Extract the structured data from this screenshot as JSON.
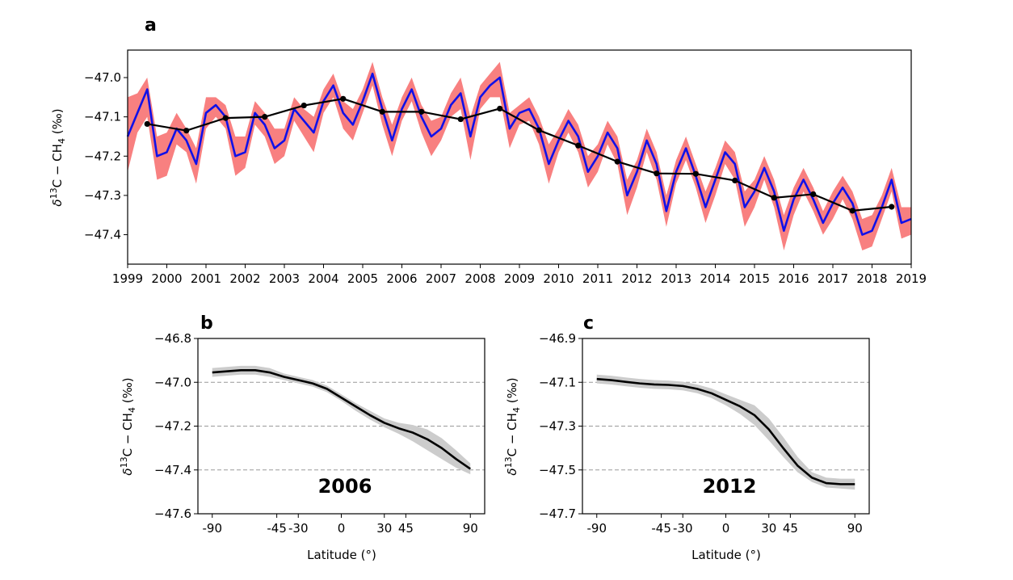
{
  "chart_data": [
    {
      "panel_label": "a",
      "type": "line",
      "ylabel": "δ13C − CH4 (‰)",
      "ylabel_parts": {
        "delta": "δ",
        "sup": "13",
        "mid": "C − CH",
        "sub": "4",
        "unit": " (‰)"
      },
      "xlim": [
        1999.0,
        2019.0
      ],
      "ylim": [
        -47.475,
        -46.93
      ],
      "x_ticks": [
        1999,
        2000,
        2001,
        2002,
        2003,
        2004,
        2005,
        2006,
        2007,
        2008,
        2009,
        2010,
        2011,
        2012,
        2013,
        2014,
        2015,
        2016,
        2017,
        2018,
        2019
      ],
      "x_tick_labels": [
        "1999",
        "2000",
        "2001",
        "2002",
        "2003",
        "2004",
        "2005",
        "2006",
        "2007",
        "2008",
        "2009",
        "2010",
        "2011",
        "2012",
        "2013",
        "2014",
        "2015",
        "2016",
        "2017",
        "2018",
        "2019"
      ],
      "y_ticks": [
        -47.4,
        -47.3,
        -47.2,
        -47.1,
        -47.0
      ],
      "y_tick_labels": [
        "−47.4",
        "−47.3",
        "−47.2",
        "−47.1",
        "−47.0"
      ],
      "series": [
        {
          "kind": "uncertainty_band",
          "color": "#f88080",
          "x": [
            1999.0,
            1999.25,
            1999.5,
            1999.75,
            2000.0,
            2000.25,
            2000.5,
            2000.75,
            2001.0,
            2001.25,
            2001.5,
            2001.75,
            2002.0,
            2002.25,
            2002.5,
            2002.75,
            2003.0,
            2003.25,
            2003.5,
            2003.75,
            2004.0,
            2004.25,
            2004.5,
            2004.75,
            2005.0,
            2005.25,
            2005.5,
            2005.75,
            2006.0,
            2006.25,
            2006.5,
            2006.75,
            2007.0,
            2007.25,
            2007.5,
            2007.75,
            2008.0,
            2008.25,
            2008.5,
            2008.75,
            2009.0,
            2009.25,
            2009.5,
            2009.75,
            2010.0,
            2010.25,
            2010.5,
            2010.75,
            2011.0,
            2011.25,
            2011.5,
            2011.75,
            2012.0,
            2012.25,
            2012.5,
            2012.75,
            2013.0,
            2013.25,
            2013.5,
            2013.75,
            2014.0,
            2014.25,
            2014.5,
            2014.75,
            2015.0,
            2015.25,
            2015.5,
            2015.75,
            2016.0,
            2016.25,
            2016.5,
            2016.75,
            2017.0,
            2017.25,
            2017.5,
            2017.75,
            2018.0,
            2018.25,
            2018.5,
            2018.75,
            2019.0
          ],
          "upper": [
            -47.05,
            -47.04,
            -47.0,
            -47.15,
            -47.14,
            -47.09,
            -47.13,
            -47.18,
            -47.05,
            -47.05,
            -47.07,
            -47.15,
            -47.15,
            -47.06,
            -47.09,
            -47.13,
            -47.13,
            -47.05,
            -47.08,
            -47.1,
            -47.03,
            -46.99,
            -47.06,
            -47.08,
            -47.03,
            -46.96,
            -47.05,
            -47.12,
            -47.05,
            -47.0,
            -47.07,
            -47.11,
            -47.1,
            -47.04,
            -47.0,
            -47.1,
            -47.02,
            -46.99,
            -46.96,
            -47.09,
            -47.07,
            -47.05,
            -47.1,
            -47.17,
            -47.13,
            -47.08,
            -47.12,
            -47.2,
            -47.17,
            -47.11,
            -47.15,
            -47.26,
            -47.21,
            -47.13,
            -47.19,
            -47.3,
            -47.21,
            -47.15,
            -47.22,
            -47.29,
            -47.23,
            -47.16,
            -47.19,
            -47.29,
            -47.26,
            -47.2,
            -47.26,
            -47.35,
            -47.28,
            -47.23,
            -47.28,
            -47.34,
            -47.29,
            -47.25,
            -47.29,
            -47.36,
            -47.35,
            -47.3,
            -47.23,
            -47.33,
            -47.33
          ],
          "lower": [
            -47.24,
            -47.14,
            -47.1,
            -47.26,
            -47.25,
            -47.17,
            -47.19,
            -47.27,
            -47.13,
            -47.1,
            -47.13,
            -47.25,
            -47.23,
            -47.12,
            -47.15,
            -47.22,
            -47.2,
            -47.11,
            -47.15,
            -47.19,
            -47.09,
            -47.05,
            -47.13,
            -47.16,
            -47.09,
            -47.02,
            -47.12,
            -47.2,
            -47.11,
            -47.06,
            -47.14,
            -47.2,
            -47.16,
            -47.1,
            -47.08,
            -47.21,
            -47.08,
            -47.05,
            -47.05,
            -47.18,
            -47.12,
            -47.11,
            -47.17,
            -47.27,
            -47.19,
            -47.14,
            -47.19,
            -47.28,
            -47.24,
            -47.17,
            -47.22,
            -47.35,
            -47.28,
            -47.19,
            -47.26,
            -47.38,
            -47.27,
            -47.21,
            -47.28,
            -47.37,
            -47.3,
            -47.22,
            -47.26,
            -47.38,
            -47.33,
            -47.26,
            -47.33,
            -47.44,
            -47.35,
            -47.29,
            -47.34,
            -47.4,
            -47.36,
            -47.31,
            -47.36,
            -47.44,
            -47.43,
            -47.36,
            -47.29,
            -47.41,
            -47.4
          ]
        },
        {
          "kind": "line",
          "color": "#1010e8",
          "x": [
            1999.0,
            1999.25,
            1999.5,
            1999.75,
            2000.0,
            2000.25,
            2000.5,
            2000.75,
            2001.0,
            2001.25,
            2001.5,
            2001.75,
            2002.0,
            2002.25,
            2002.5,
            2002.75,
            2003.0,
            2003.25,
            2003.5,
            2003.75,
            2004.0,
            2004.25,
            2004.5,
            2004.75,
            2005.0,
            2005.25,
            2005.5,
            2005.75,
            2006.0,
            2006.25,
            2006.5,
            2006.75,
            2007.0,
            2007.25,
            2007.5,
            2007.75,
            2008.0,
            2008.25,
            2008.5,
            2008.75,
            2009.0,
            2009.25,
            2009.5,
            2009.75,
            2010.0,
            2010.25,
            2010.5,
            2010.75,
            2011.0,
            2011.25,
            2011.5,
            2011.75,
            2012.0,
            2012.25,
            2012.5,
            2012.75,
            2013.0,
            2013.25,
            2013.5,
            2013.75,
            2014.0,
            2014.25,
            2014.5,
            2014.75,
            2015.0,
            2015.25,
            2015.5,
            2015.75,
            2016.0,
            2016.25,
            2016.5,
            2016.75,
            2017.0,
            2017.25,
            2017.5,
            2017.75,
            2018.0,
            2018.25,
            2018.5,
            2018.75,
            2019.0
          ],
          "y": [
            -47.15,
            -47.09,
            -47.03,
            -47.2,
            -47.19,
            -47.13,
            -47.16,
            -47.22,
            -47.09,
            -47.07,
            -47.1,
            -47.2,
            -47.19,
            -47.09,
            -47.12,
            -47.18,
            -47.16,
            -47.08,
            -47.11,
            -47.14,
            -47.06,
            -47.02,
            -47.09,
            -47.12,
            -47.06,
            -46.99,
            -47.08,
            -47.16,
            -47.08,
            -47.03,
            -47.1,
            -47.15,
            -47.13,
            -47.07,
            -47.04,
            -47.15,
            -47.05,
            -47.02,
            -47.0,
            -47.13,
            -47.09,
            -47.08,
            -47.13,
            -47.22,
            -47.16,
            -47.11,
            -47.15,
            -47.24,
            -47.2,
            -47.14,
            -47.18,
            -47.3,
            -47.24,
            -47.16,
            -47.22,
            -47.34,
            -47.24,
            -47.18,
            -47.25,
            -47.33,
            -47.26,
            -47.19,
            -47.22,
            -47.33,
            -47.29,
            -47.23,
            -47.29,
            -47.39,
            -47.31,
            -47.26,
            -47.31,
            -47.37,
            -47.32,
            -47.28,
            -47.32,
            -47.4,
            -47.39,
            -47.33,
            -47.26,
            -47.37,
            -47.36
          ]
        },
        {
          "kind": "annual_mean",
          "color": "#000000",
          "x": [
            1999.5,
            2000.5,
            2001.5,
            2002.5,
            2003.5,
            2004.5,
            2005.5,
            2006.5,
            2007.5,
            2008.5,
            2009.5,
            2010.5,
            2011.5,
            2012.5,
            2013.5,
            2014.5,
            2015.5,
            2016.5,
            2017.5,
            2018.5
          ],
          "y": [
            -47.118,
            -47.135,
            -47.103,
            -47.1,
            -47.071,
            -47.054,
            -47.087,
            -47.087,
            -47.106,
            -47.079,
            -47.134,
            -47.173,
            -47.214,
            -47.244,
            -47.245,
            -47.262,
            -47.306,
            -47.297,
            -47.339,
            -47.329
          ]
        }
      ]
    },
    {
      "panel_label": "b",
      "type": "line",
      "annotation": "2006",
      "xlabel": "Latitude (°)",
      "ylabel": "δ13C − CH4 (‰)",
      "ylabel_parts": {
        "delta": "δ",
        "sup": "13",
        "mid": "C − CH",
        "sub": "4",
        "unit": " (‰)"
      },
      "xlim": [
        -100,
        100
      ],
      "ylim": [
        -47.6,
        -46.8
      ],
      "x_ticks": [
        -90,
        -45,
        -30,
        0,
        30,
        45,
        90
      ],
      "x_tick_labels": [
        "-90",
        "-45",
        "-30",
        "0",
        "30",
        "45",
        "90"
      ],
      "y_ticks": [
        -47.6,
        -47.4,
        -47.2,
        -47.0,
        -46.8
      ],
      "y_tick_labels": [
        "−47.6",
        "−47.4",
        "−47.2",
        "−47.0",
        "−46.8"
      ],
      "hlines": [
        -47.0,
        -47.2,
        -47.4
      ],
      "x": [
        -90,
        -80,
        -70,
        -60,
        -50,
        -40,
        -30,
        -20,
        -10,
        0,
        10,
        20,
        30,
        40,
        50,
        60,
        70,
        80,
        90
      ],
      "y": [
        -46.955,
        -46.95,
        -46.945,
        -46.945,
        -46.955,
        -46.975,
        -46.99,
        -47.005,
        -47.03,
        -47.07,
        -47.11,
        -47.15,
        -47.185,
        -47.21,
        -47.23,
        -47.26,
        -47.3,
        -47.35,
        -47.395
      ],
      "lower": [
        -46.975,
        -46.97,
        -46.965,
        -46.965,
        -46.975,
        -46.99,
        -47.005,
        -47.02,
        -47.045,
        -47.085,
        -47.13,
        -47.17,
        -47.205,
        -47.235,
        -47.27,
        -47.31,
        -47.35,
        -47.39,
        -47.42
      ],
      "upper": [
        -46.935,
        -46.93,
        -46.925,
        -46.925,
        -46.935,
        -46.96,
        -46.975,
        -46.99,
        -47.015,
        -47.055,
        -47.095,
        -47.13,
        -47.165,
        -47.185,
        -47.195,
        -47.215,
        -47.255,
        -47.31,
        -47.37
      ]
    },
    {
      "panel_label": "c",
      "type": "line",
      "annotation": "2012",
      "xlabel": "Latitude (°)",
      "ylabel": "δ13C − CH4 (‰)",
      "ylabel_parts": {
        "delta": "δ",
        "sup": "13",
        "mid": "C − CH",
        "sub": "4",
        "unit": " (‰)"
      },
      "xlim": [
        -100,
        100
      ],
      "ylim": [
        -47.7,
        -46.9
      ],
      "x_ticks": [
        -90,
        -45,
        -30,
        0,
        30,
        45,
        90
      ],
      "x_tick_labels": [
        "-90",
        "-45",
        "-30",
        "0",
        "30",
        "45",
        "90"
      ],
      "y_ticks": [
        -47.7,
        -47.5,
        -47.3,
        -47.1,
        -46.9
      ],
      "y_tick_labels": [
        "−47.7",
        "−47.5",
        "−47.3",
        "−47.1",
        "−46.9"
      ],
      "hlines": [
        -47.1,
        -47.3,
        -47.5
      ],
      "x": [
        -90,
        -80,
        -70,
        -60,
        -50,
        -40,
        -30,
        -20,
        -10,
        0,
        10,
        20,
        30,
        40,
        50,
        60,
        70,
        80,
        90
      ],
      "y": [
        -47.085,
        -47.09,
        -47.098,
        -47.105,
        -47.11,
        -47.112,
        -47.117,
        -47.13,
        -47.15,
        -47.18,
        -47.21,
        -47.25,
        -47.315,
        -47.4,
        -47.48,
        -47.535,
        -47.56,
        -47.565,
        -47.565
      ],
      "lower": [
        -47.105,
        -47.11,
        -47.118,
        -47.125,
        -47.13,
        -47.132,
        -47.137,
        -47.15,
        -47.172,
        -47.205,
        -47.245,
        -47.295,
        -47.365,
        -47.44,
        -47.51,
        -47.555,
        -47.58,
        -47.585,
        -47.59
      ],
      "upper": [
        -47.065,
        -47.07,
        -47.078,
        -47.085,
        -47.09,
        -47.092,
        -47.097,
        -47.11,
        -47.128,
        -47.155,
        -47.18,
        -47.205,
        -47.265,
        -47.35,
        -47.44,
        -47.51,
        -47.535,
        -47.54,
        -47.54
      ]
    }
  ]
}
